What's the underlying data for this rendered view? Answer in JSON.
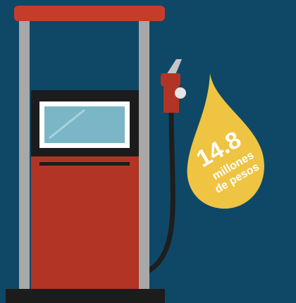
{
  "drop": {
    "amount": 14.8,
    "line1": "millones",
    "line2": "de pesos"
  }
}
